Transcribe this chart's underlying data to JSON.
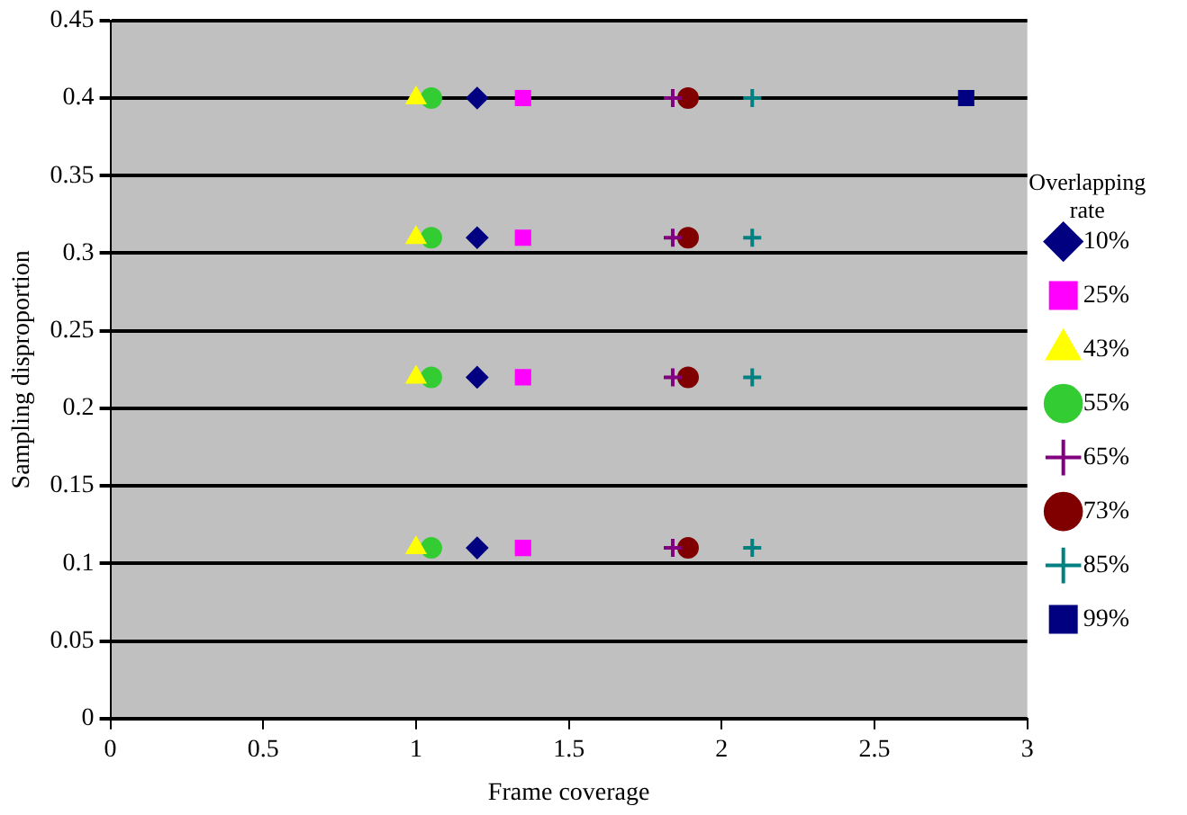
{
  "chart_data": {
    "type": "scatter",
    "xlabel": "Frame coverage",
    "ylabel": "Sampling disproportion",
    "legend_title": "Overlapping rate",
    "xlim": [
      0,
      3
    ],
    "xticks": [
      0,
      0.5,
      1,
      1.5,
      2,
      2.5,
      3
    ],
    "ylim": [
      0,
      0.45
    ],
    "yticks": [
      0,
      0.05,
      0.1,
      0.15,
      0.2,
      0.25,
      0.3,
      0.35,
      0.4,
      0.45
    ],
    "grid": "y",
    "legend": "right",
    "series": [
      {
        "name": "10%",
        "color": "#000080",
        "marker": "diamond",
        "x": [
          1.2,
          1.2,
          1.2,
          1.2
        ],
        "values": [
          0.4,
          0.31,
          0.22,
          0.11
        ]
      },
      {
        "name": "25%",
        "color": "#ff00ff",
        "marker": "square",
        "x": [
          1.35,
          1.35,
          1.35,
          1.35
        ],
        "values": [
          0.4,
          0.31,
          0.22,
          0.11
        ]
      },
      {
        "name": "43%",
        "color": "#ffff00",
        "marker": "triangle",
        "x": [
          1.0,
          1.0,
          1.0,
          1.0
        ],
        "values": [
          0.4,
          0.31,
          0.22,
          0.11
        ]
      },
      {
        "name": "55%",
        "color": "#33cc33",
        "marker": "circle",
        "x": [
          1.05,
          1.05,
          1.05,
          1.05
        ],
        "values": [
          0.4,
          0.31,
          0.22,
          0.11
        ]
      },
      {
        "name": "65%",
        "color": "#800080",
        "marker": "cross",
        "x": [
          1.84,
          1.84,
          1.84,
          1.84
        ],
        "values": [
          0.4,
          0.31,
          0.22,
          0.11
        ]
      },
      {
        "name": "73%",
        "color": "#800000",
        "marker": "circle",
        "x": [
          1.89,
          1.89,
          1.89,
          1.89
        ],
        "values": [
          0.4,
          0.31,
          0.22,
          0.11
        ]
      },
      {
        "name": "85%",
        "color": "#008080",
        "marker": "cross",
        "x": [
          2.1,
          2.1,
          2.1,
          2.1
        ],
        "values": [
          0.4,
          0.31,
          0.22,
          0.11
        ]
      },
      {
        "name": "99%",
        "color": "#000080",
        "marker": "square",
        "x": [
          2.8
        ],
        "values": [
          0.4
        ]
      }
    ]
  }
}
